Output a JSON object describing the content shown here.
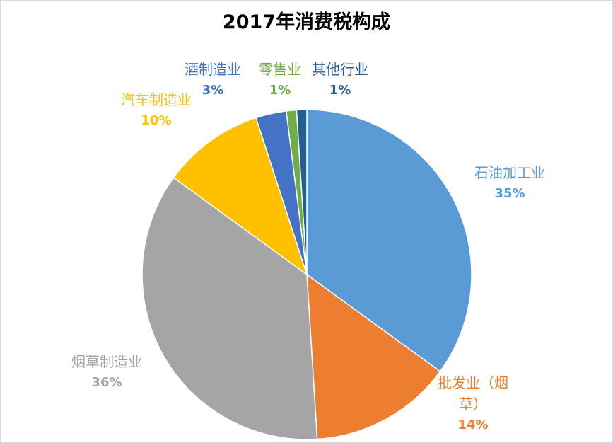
{
  "chart_data": {
    "type": "pie",
    "title": "2017年消费税构成",
    "categories": [
      "石油加工业",
      "批发业（烟草）",
      "烟草制造业",
      "汽车制造业",
      "酒制造业",
      "零售业",
      "其他行业"
    ],
    "values": [
      35,
      14,
      36,
      10,
      3,
      1,
      1
    ],
    "value_labels": [
      "35%",
      "14%",
      "36%",
      "10%",
      "3%",
      "1%",
      "1%"
    ],
    "colors": [
      "#5b9bd5",
      "#ed7d31",
      "#a5a5a5",
      "#ffc000",
      "#4472c4",
      "#70ad47",
      "#255e91"
    ]
  }
}
